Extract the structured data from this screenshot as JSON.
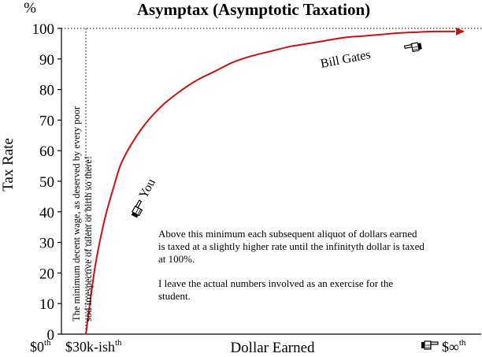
{
  "chart_data": {
    "type": "line",
    "title": "Asymptax (Asymptotic Taxation)",
    "ylabel": "Tax Rate",
    "yunit": "%",
    "xlabel": "Dollar Earned",
    "ylim": [
      0,
      100
    ],
    "yticks": [
      "0",
      "10",
      "20",
      "30",
      "40",
      "50",
      "60",
      "70",
      "80",
      "90",
      "100"
    ],
    "xticks": [
      {
        "label": "$0",
        "sup": "th"
      },
      {
        "label": "$30k-ish",
        "sup": "th"
      },
      {
        "label": "$∞",
        "sup": "th",
        "icon": "pointing-hand-icon"
      }
    ],
    "grid": false,
    "series": [
      {
        "color": "#cc1111",
        "x": [
          0.0,
          0.025,
          0.05,
          0.075,
          0.1,
          0.15,
          0.2,
          0.25,
          0.3,
          0.35,
          0.4,
          0.45,
          0.5,
          0.55,
          0.6,
          0.65,
          0.7,
          0.75,
          0.8,
          0.85,
          0.9,
          0.95,
          1.0
        ],
        "y": [
          0,
          22,
          37,
          48,
          57,
          67,
          74,
          79,
          83,
          86,
          89,
          91,
          92.5,
          94,
          95,
          96,
          97,
          97.5,
          98,
          98.5,
          98.8,
          99,
          99
        ]
      }
    ],
    "reference_lines": [
      {
        "orientation": "horizontal",
        "y": 100,
        "style": "dotted"
      },
      {
        "orientation": "vertical",
        "x": 0,
        "style": "dotted"
      }
    ],
    "annotations": {
      "minimum_wage": "The minimum decent wage, as deserved by every poor sod irrespective of talent or birth so there!",
      "you": "You",
      "bill_gates": "Bill Gates",
      "explanation": [
        "Above this minimum each subsequent aliquot of dollars earned is taxed at a slightly higher rate until the infinityth dollar is taxed at 100%.",
        "I leave the actual numbers involved as an exercise for the student."
      ]
    },
    "icons": [
      "pointing-hand-icon"
    ]
  }
}
